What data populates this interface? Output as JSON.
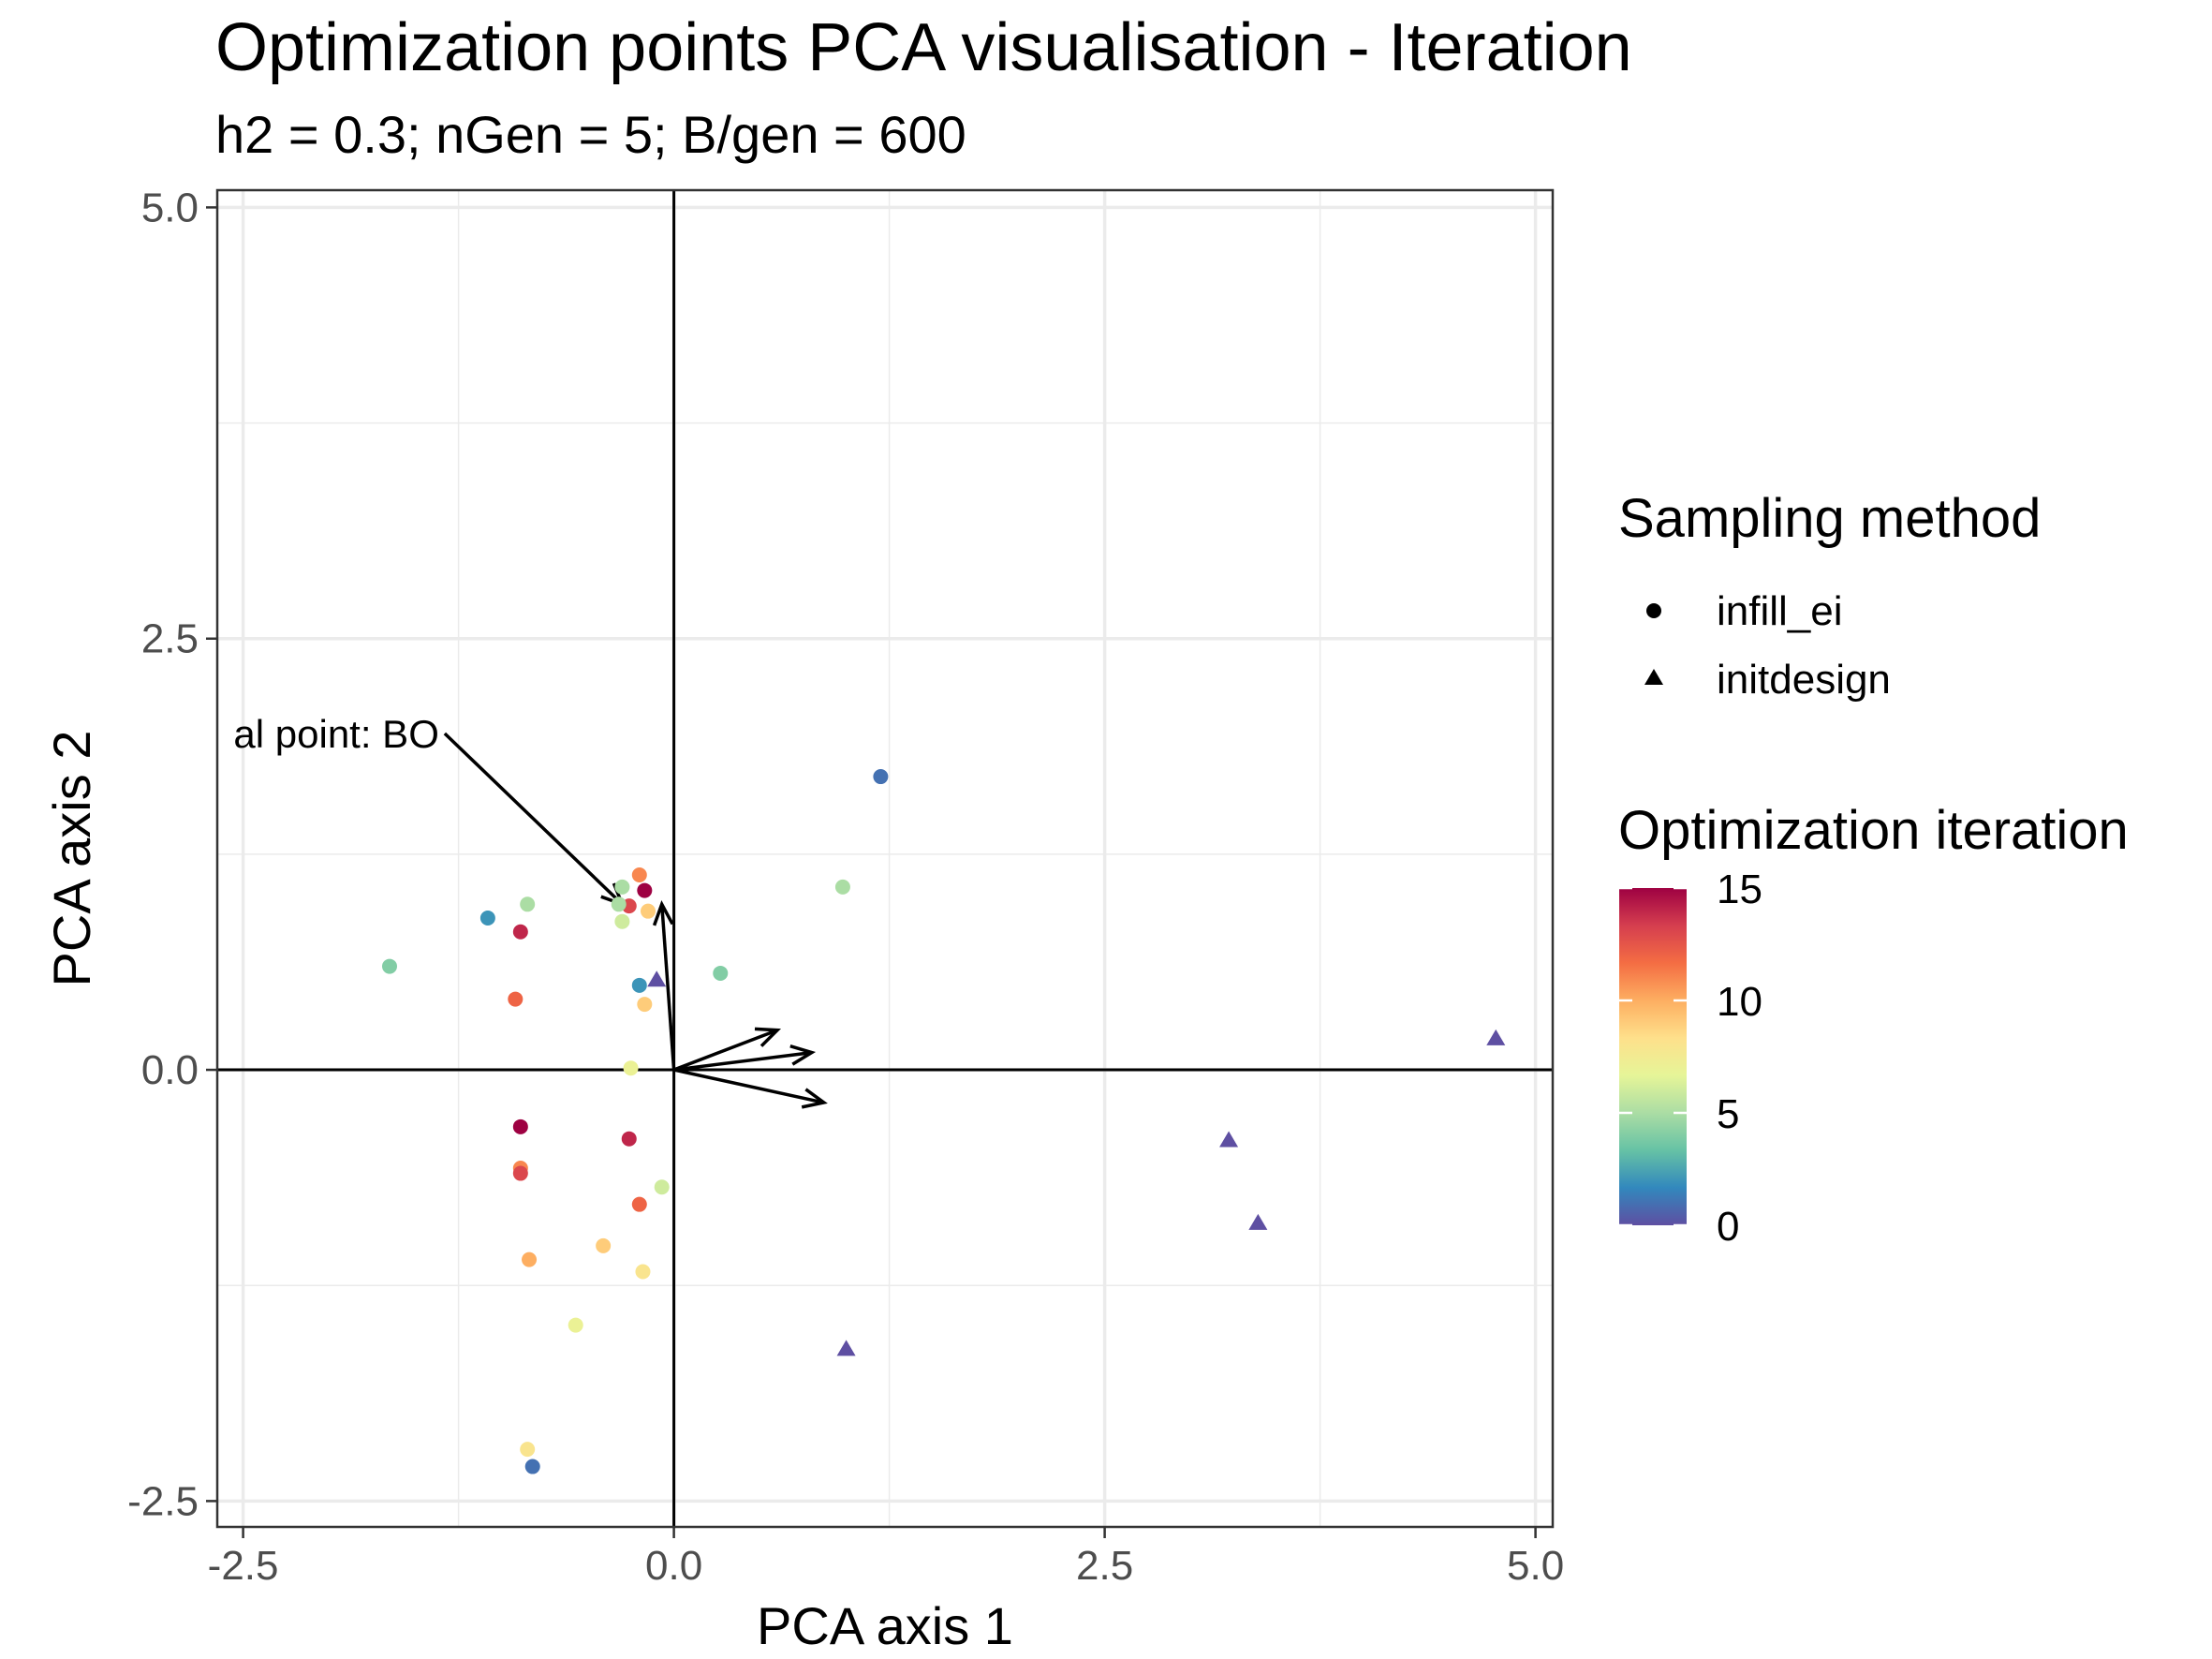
{
  "chart_data": {
    "type": "scatter",
    "title": "Optimization points PCA visualisation - Iteration",
    "subtitle": "h2 = 0.3; nGen = 5; B/gen = 600",
    "xlabel": "PCA axis 1",
    "ylabel": "PCA axis 2",
    "xlim": [
      -2.65,
      5.1
    ],
    "ylim": [
      -2.65,
      5.1
    ],
    "xticks": [
      -2.5,
      0.0,
      2.5,
      5.0
    ],
    "yticks": [
      -2.5,
      0.0,
      2.5,
      5.0
    ],
    "xtick_labels": [
      "-2.5",
      "0.0",
      "2.5",
      "5.0"
    ],
    "ytick_labels": [
      "-2.5",
      "0.0",
      "2.5",
      "5.0"
    ],
    "grid": true,
    "reference_lines": {
      "x": 0,
      "y": 0
    },
    "annotation": {
      "text": "al point: BO",
      "arrow_from": [
        -1.33,
        1.95
      ],
      "arrow_to": [
        -0.3,
        0.96
      ]
    },
    "loading_vectors": [
      {
        "x": -0.07,
        "y": 0.96
      },
      {
        "x": 0.6,
        "y": 0.23
      },
      {
        "x": 0.8,
        "y": 0.1
      },
      {
        "x": 0.87,
        "y": -0.19
      }
    ],
    "legend": {
      "position": "right",
      "shape_title": "Sampling method",
      "shapes": [
        {
          "label": "infill_ei",
          "shape": "circle"
        },
        {
          "label": "initdesign",
          "shape": "triangle"
        }
      ],
      "color_title": "Optimization iteration",
      "color_range": [
        0,
        15
      ],
      "color_ticks": [
        15,
        10,
        5,
        0
      ],
      "colorscale": [
        "#5E4FA2",
        "#3288BD",
        "#66C2A5",
        "#ABDDA4",
        "#E6F598",
        "#FEE08B",
        "#FDAE61",
        "#F46D43",
        "#D53E4F",
        "#9E0142"
      ]
    },
    "points": [
      {
        "x": 1.2,
        "y": 1.7,
        "iteration": 1,
        "method": "infill_ei"
      },
      {
        "x": 0.98,
        "y": 1.06,
        "iteration": 5,
        "method": "infill_ei"
      },
      {
        "x": 0.27,
        "y": 0.56,
        "iteration": 4,
        "method": "infill_ei"
      },
      {
        "x": -1.65,
        "y": 0.6,
        "iteration": 4,
        "method": "infill_ei"
      },
      {
        "x": -1.08,
        "y": 0.88,
        "iteration": 2,
        "method": "infill_ei"
      },
      {
        "x": -0.85,
        "y": 0.96,
        "iteration": 5,
        "method": "infill_ei"
      },
      {
        "x": -0.89,
        "y": 0.8,
        "iteration": 14,
        "method": "infill_ei"
      },
      {
        "x": -0.92,
        "y": 0.41,
        "iteration": 12,
        "method": "infill_ei"
      },
      {
        "x": -0.3,
        "y": 1.06,
        "iteration": 5,
        "method": "infill_ei"
      },
      {
        "x": -0.2,
        "y": 1.13,
        "iteration": 11,
        "method": "infill_ei"
      },
      {
        "x": -0.17,
        "y": 1.04,
        "iteration": 15,
        "method": "infill_ei"
      },
      {
        "x": -0.26,
        "y": 0.95,
        "iteration": 13,
        "method": "infill_ei"
      },
      {
        "x": -0.32,
        "y": 0.96,
        "iteration": 5,
        "method": "infill_ei"
      },
      {
        "x": -0.15,
        "y": 0.92,
        "iteration": 9,
        "method": "infill_ei"
      },
      {
        "x": -0.3,
        "y": 0.86,
        "iteration": 6,
        "method": "infill_ei"
      },
      {
        "x": -0.2,
        "y": 0.49,
        "iteration": 2,
        "method": "infill_ei"
      },
      {
        "x": -0.17,
        "y": 0.38,
        "iteration": 9,
        "method": "infill_ei"
      },
      {
        "x": -0.25,
        "y": 0.01,
        "iteration": 7,
        "method": "infill_ei"
      },
      {
        "x": -0.89,
        "y": -0.33,
        "iteration": 15,
        "method": "infill_ei"
      },
      {
        "x": -0.89,
        "y": -0.57,
        "iteration": 11,
        "method": "infill_ei"
      },
      {
        "x": -0.89,
        "y": -0.6,
        "iteration": 13,
        "method": "infill_ei"
      },
      {
        "x": -0.26,
        "y": -0.4,
        "iteration": 14,
        "method": "infill_ei"
      },
      {
        "x": -0.2,
        "y": -0.78,
        "iteration": 12,
        "method": "infill_ei"
      },
      {
        "x": -0.07,
        "y": -0.68,
        "iteration": 6,
        "method": "infill_ei"
      },
      {
        "x": -0.84,
        "y": -1.1,
        "iteration": 10,
        "method": "infill_ei"
      },
      {
        "x": -0.41,
        "y": -1.02,
        "iteration": 9,
        "method": "infill_ei"
      },
      {
        "x": -0.18,
        "y": -1.17,
        "iteration": 8,
        "method": "infill_ei"
      },
      {
        "x": -0.57,
        "y": -1.48,
        "iteration": 7,
        "method": "infill_ei"
      },
      {
        "x": -0.85,
        "y": -2.2,
        "iteration": 8,
        "method": "infill_ei"
      },
      {
        "x": -0.82,
        "y": -2.3,
        "iteration": 1,
        "method": "infill_ei"
      },
      {
        "x": -0.1,
        "y": 0.52,
        "iteration": 0,
        "method": "initdesign"
      },
      {
        "x": 4.77,
        "y": 0.18,
        "iteration": 0,
        "method": "initdesign"
      },
      {
        "x": 3.22,
        "y": -0.41,
        "iteration": 0,
        "method": "initdesign"
      },
      {
        "x": 3.39,
        "y": -0.89,
        "iteration": 0,
        "method": "initdesign"
      },
      {
        "x": 1.0,
        "y": -1.62,
        "iteration": 0,
        "method": "initdesign"
      }
    ]
  }
}
